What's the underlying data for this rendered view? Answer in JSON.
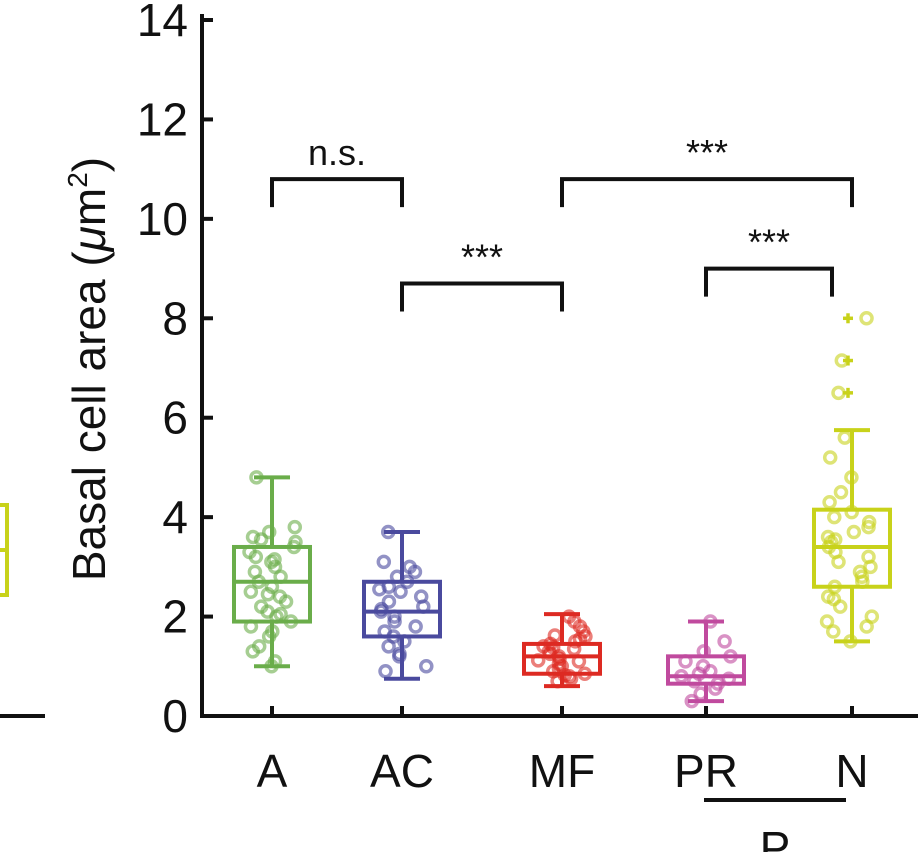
{
  "chart_data": {
    "type": "box",
    "ylabel": "Basal cell area (μm²)",
    "ylabel_parts": {
      "main": "Basal cell area (",
      "mu": "μ",
      "m": "m",
      "sup": "2",
      "close": ")"
    },
    "ylim": [
      0,
      14
    ],
    "yticks": [
      0,
      2,
      4,
      6,
      8,
      10,
      12,
      14
    ],
    "categories": [
      "A",
      "AC",
      "MF",
      "PR",
      "N"
    ],
    "group_bracket": {
      "label": "P",
      "members": [
        "PR",
        "N"
      ]
    },
    "boxes": [
      {
        "name": "A",
        "color": "#6aad4a",
        "q1": 1.9,
        "median": 2.7,
        "q3": 3.4,
        "whisker_low": 1.0,
        "whisker_high": 4.8,
        "points": [
          1.0,
          1.1,
          1.3,
          1.4,
          1.6,
          1.7,
          1.8,
          1.9,
          2.0,
          2.1,
          2.2,
          2.3,
          2.4,
          2.5,
          2.6,
          2.7,
          2.8,
          2.9,
          3.0,
          3.1,
          3.2,
          3.3,
          3.4,
          3.5,
          3.6,
          3.7,
          3.8,
          4.8,
          2.45,
          3.15,
          2.05,
          3.55
        ]
      },
      {
        "name": "AC",
        "color": "#4a4a9e",
        "q1": 1.6,
        "median": 2.1,
        "q3": 2.7,
        "whisker_low": 0.75,
        "whisker_high": 3.7,
        "points": [
          0.9,
          1.0,
          1.2,
          1.4,
          1.5,
          1.6,
          1.7,
          1.8,
          1.9,
          2.0,
          2.1,
          2.2,
          2.3,
          2.4,
          2.5,
          2.6,
          2.7,
          2.8,
          2.9,
          3.0,
          3.1,
          3.7,
          1.25,
          2.15,
          2.55
        ]
      },
      {
        "name": "MF",
        "color": "#dd2a22",
        "q1": 0.85,
        "median": 1.2,
        "q3": 1.45,
        "whisker_low": 0.6,
        "whisker_high": 2.05,
        "points": [
          0.7,
          0.75,
          0.8,
          0.85,
          0.9,
          0.95,
          1.0,
          1.05,
          1.1,
          1.15,
          1.2,
          1.25,
          1.3,
          1.35,
          1.4,
          1.45,
          1.5,
          1.55,
          1.6,
          1.7,
          1.8,
          1.9,
          2.0,
          0.82,
          1.12,
          1.38,
          1.62
        ]
      },
      {
        "name": "PR",
        "color": "#c04a9e",
        "q1": 0.65,
        "median": 0.8,
        "q3": 1.2,
        "whisker_low": 0.3,
        "whisker_high": 1.9,
        "points": [
          0.3,
          0.45,
          0.55,
          0.65,
          0.7,
          0.75,
          0.8,
          0.85,
          0.9,
          1.0,
          1.1,
          1.2,
          1.3,
          1.5,
          1.9
        ]
      },
      {
        "name": "N",
        "color": "#c8d21a",
        "q1": 2.6,
        "median": 3.4,
        "q3": 4.15,
        "whisker_low": 1.5,
        "whisker_high": 5.75,
        "points": [
          1.5,
          1.7,
          1.8,
          2.0,
          2.2,
          2.4,
          2.6,
          2.7,
          2.8,
          2.9,
          3.0,
          3.1,
          3.2,
          3.3,
          3.4,
          3.5,
          3.6,
          3.7,
          3.8,
          3.9,
          4.0,
          4.1,
          4.3,
          4.5,
          4.8,
          5.2,
          5.6,
          6.5,
          7.15,
          8.0,
          2.35,
          3.55,
          1.9
        ]
      }
    ],
    "outliers": [
      {
        "category": "N",
        "value": 8.0
      },
      {
        "category": "N",
        "value": 7.15
      },
      {
        "category": "N",
        "value": 6.5
      }
    ],
    "significance": [
      {
        "from": "A",
        "to": "AC",
        "label": "n.s.",
        "y": 10.8
      },
      {
        "from": "AC",
        "to": "MF",
        "label": "***",
        "y": 8.7
      },
      {
        "from": "MF",
        "to": "N",
        "label": "***",
        "y": 10.8
      },
      {
        "from": "PR",
        "to": "N",
        "label": "***",
        "y": 9.0
      }
    ],
    "left_partial_box_color": "#c8d21a"
  }
}
